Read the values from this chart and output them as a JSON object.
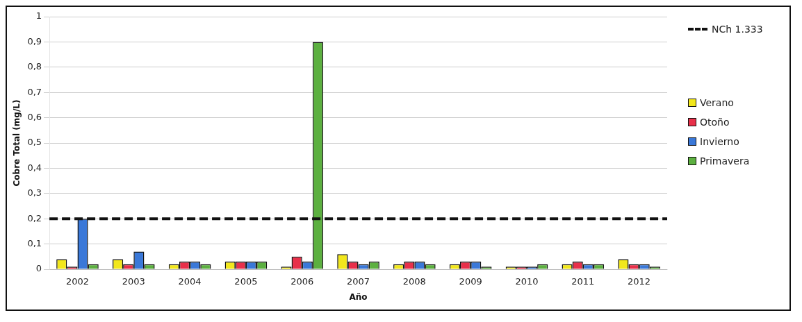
{
  "chart_data": {
    "type": "bar",
    "xlabel": "Año",
    "ylabel": "Cobre Total (mg/L)",
    "categories": [
      "2002",
      "2003",
      "2004",
      "2005",
      "2006",
      "2007",
      "2008",
      "2009",
      "2010",
      "2011",
      "2012"
    ],
    "series": [
      {
        "name": "Verano",
        "color": "#f2e71c",
        "values": [
          0.04,
          0.04,
          0.02,
          0.03,
          0.01,
          0.06,
          0.02,
          0.02,
          0.01,
          0.02,
          0.04
        ]
      },
      {
        "name": "Otoño",
        "color": "#e8304a",
        "values": [
          0.01,
          0.02,
          0.03,
          0.03,
          0.05,
          0.03,
          0.03,
          0.03,
          0.01,
          0.03,
          0.02
        ]
      },
      {
        "name": "Invierno",
        "color": "#3a78d8",
        "values": [
          0.2,
          0.07,
          0.03,
          0.03,
          0.03,
          0.02,
          0.03,
          0.03,
          0.01,
          0.02,
          0.02
        ]
      },
      {
        "name": "Primavera",
        "color": "#5cb040",
        "values": [
          0.02,
          0.02,
          0.02,
          0.03,
          0.9,
          0.03,
          0.02,
          0.01,
          0.02,
          0.02,
          0.01
        ]
      }
    ],
    "ylim": [
      0,
      1
    ],
    "yticks": [
      0,
      {
        "value": 0.1,
        "label": "0,1"
      },
      {
        "value": 0.2,
        "label": "0,2"
      },
      {
        "value": 0.3,
        "label": "0,3"
      },
      {
        "value": 0.4,
        "label": "0,4"
      },
      {
        "value": 0.5,
        "label": "0,5"
      },
      {
        "value": 0.6,
        "label": "0,6"
      },
      {
        "value": 0.7,
        "label": "0,7"
      },
      {
        "value": 0.8,
        "label": "0,8"
      },
      {
        "value": 0.9,
        "label": "0,9"
      },
      1
    ],
    "grid": "y",
    "legend": "right",
    "ref_lines": [
      {
        "axis": "y",
        "value": 0.2,
        "label": "NCh 1.333",
        "color": "#111111",
        "line_style": "dashed"
      }
    ]
  }
}
